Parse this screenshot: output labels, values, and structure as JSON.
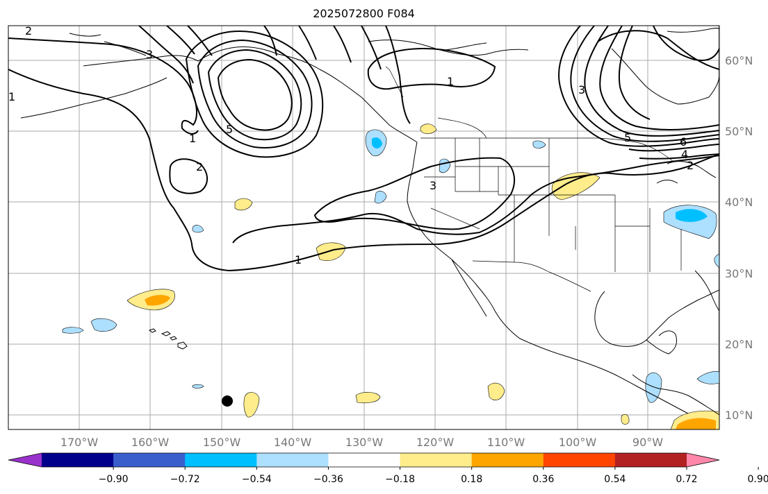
{
  "title": "2025072800 F084",
  "map": {
    "lat_labels": [
      "60°N",
      "50°N",
      "40°N",
      "30°N",
      "20°N",
      "10°N"
    ],
    "lon_labels": [
      "170°W",
      "160°W",
      "150°W",
      "140°W",
      "130°W",
      "120°W",
      "110°W",
      "100°W",
      "90°W"
    ],
    "contour_labels": [
      "2",
      "3",
      "1",
      "5",
      "1",
      "2",
      "1",
      "3",
      "1",
      "3",
      "5",
      "6",
      "4",
      "2"
    ]
  },
  "colorbar": {
    "tick_labels": [
      "−0.90",
      "−0.72",
      "−0.54",
      "−0.36",
      "−0.18",
      "0.18",
      "0.36",
      "0.54",
      "0.72",
      "0.90"
    ],
    "colors": [
      "#9932CC",
      "#00008B",
      "#3A5FCD",
      "#00BFFF",
      "#ADDFFF",
      "#FFFFFF",
      "#FFEC8B",
      "#FFA500",
      "#FF4500",
      "#B22222",
      "#FF88AA"
    ]
  }
}
